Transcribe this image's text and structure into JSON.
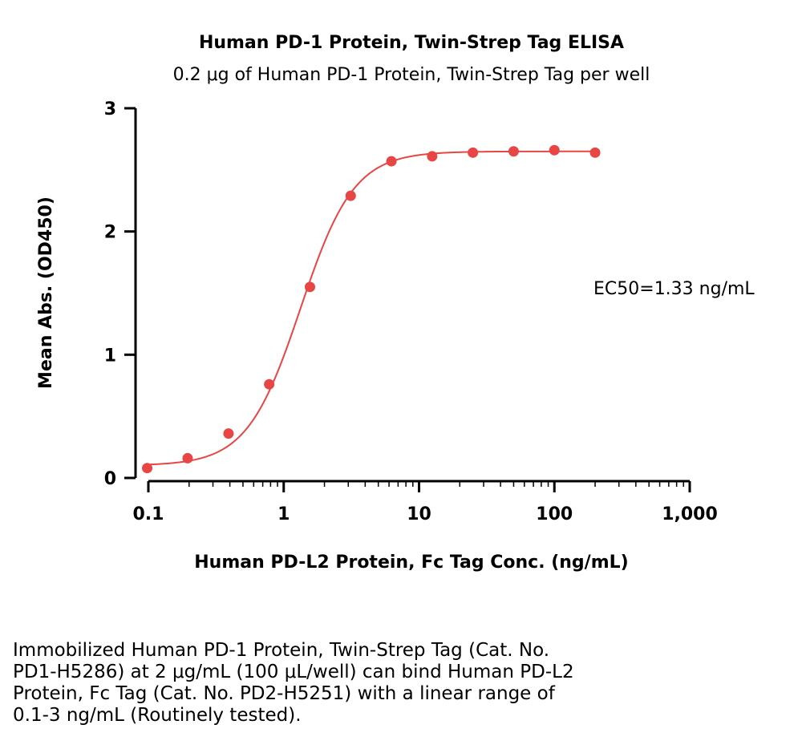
{
  "chart_data": {
    "type": "scatter",
    "title": "Human PD-1 Protein, Twin-Strep Tag ELISA",
    "subtitle": "0.2 μg of Human PD-1 Protein, Twin-Strep Tag per well",
    "xlabel": "Human PD-L2 Protein, Fc Tag Conc. (ng/mL)",
    "ylabel": "Mean Abs. (OD450)",
    "x_scale": "log",
    "xlim": [
      0.1,
      1000
    ],
    "ylim": [
      0,
      3
    ],
    "x_ticks": [
      0.1,
      1,
      10,
      100,
      1000
    ],
    "x_tick_labels": [
      "0.1",
      "1",
      "10",
      "100",
      "1,000"
    ],
    "y_ticks": [
      0,
      1,
      2,
      3
    ],
    "y_tick_labels": [
      "0",
      "1",
      "2",
      "3"
    ],
    "series": [
      {
        "color": "#e84545",
        "x": [
          0.098,
          0.195,
          0.391,
          0.781,
          1.563,
          3.125,
          6.25,
          12.5,
          25,
          50,
          100,
          200
        ],
        "y": [
          0.08,
          0.16,
          0.36,
          0.76,
          1.55,
          2.29,
          2.57,
          2.61,
          2.64,
          2.65,
          2.66,
          2.64
        ]
      }
    ],
    "fit_curve": {
      "model": "4PL",
      "bottom": 0.1,
      "top": 2.65,
      "ec50": 1.33,
      "hill": 2.2,
      "color": "#e84545"
    },
    "annotation": "EC50=1.33 ng/mL",
    "grid": false
  },
  "caption": {
    "lines": [
      "Immobilized Human PD-1 Protein, Twin-Strep Tag (Cat. No.",
      "PD1-H5286) at 2 μg/mL (100 μL/well) can bind Human PD-L2",
      "Protein, Fc Tag (Cat. No. PD2-H5251) with a linear range of",
      "0.1-3 ng/mL (Routinely tested)."
    ]
  }
}
